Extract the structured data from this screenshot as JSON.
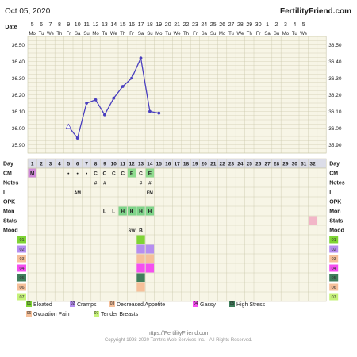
{
  "header": {
    "date": "Oct 05, 2020",
    "site": "FertilityFriend.com"
  },
  "top_axis": {
    "label": "Date",
    "dates": [
      "5",
      "6",
      "7",
      "8",
      "9",
      "10",
      "11",
      "12",
      "13",
      "14",
      "15",
      "16",
      "17",
      "18",
      "19",
      "20",
      "21",
      "22",
      "23",
      "24",
      "25",
      "26",
      "27",
      "28",
      "29",
      "30",
      "1",
      "2",
      "3",
      "4",
      "5"
    ],
    "weekdays": [
      "Mo",
      "Tu",
      "We",
      "Th",
      "Fr",
      "Sa",
      "Su",
      "Mo",
      "Tu",
      "We",
      "Th",
      "Fr",
      "Sa",
      "Su",
      "Mo",
      "Tu",
      "We",
      "Th",
      "Fr",
      "Sa",
      "Su",
      "Mo",
      "Tu",
      "We",
      "Th",
      "Fr",
      "Sa",
      "Su",
      "Mo",
      "Tu",
      "We"
    ]
  },
  "chart_data": {
    "type": "line",
    "title": "",
    "xlabel": "Day",
    "ylabel": "",
    "ylim": [
      35.85,
      36.55
    ],
    "yticks": [
      "35.90",
      "36.00",
      "36.10",
      "36.20",
      "36.30",
      "36.40",
      "36.50"
    ],
    "series": [
      {
        "x": [
          5,
          6,
          7,
          8,
          9,
          10,
          11,
          12,
          13,
          14,
          15
        ],
        "values": [
          36.01,
          35.94,
          36.15,
          36.17,
          36.08,
          36.18,
          36.25,
          36.3,
          36.42,
          36.1,
          36.09
        ],
        "open_circle_days": [
          5
        ],
        "color": "#4a3fbf"
      }
    ],
    "grid": true
  },
  "table": {
    "day_label": "Day",
    "days": [
      "1",
      "2",
      "3",
      "4",
      "5",
      "6",
      "7",
      "8",
      "9",
      "10",
      "11",
      "12",
      "13",
      "14",
      "15",
      "16",
      "17",
      "18",
      "19",
      "20",
      "21",
      "22",
      "23",
      "24",
      "25",
      "26",
      "27",
      "28",
      "29",
      "30",
      "31",
      "32"
    ],
    "rows": [
      {
        "label": "CM",
        "cells": {
          "1": "M",
          "5": "•",
          "6": "•",
          "7": "•",
          "8": "C",
          "9": "C",
          "10": "C",
          "11": "C",
          "12": "E",
          "13": "C",
          "14": "E"
        }
      },
      {
        "label": "Notes",
        "cells": {
          "8": "#",
          "9": "#",
          "13": "#",
          "14": "#"
        }
      },
      {
        "label": "I",
        "cells": {
          "6": "AM",
          "14": "FM"
        }
      },
      {
        "label": "OPK",
        "cells": {
          "8": "-",
          "9": "-",
          "10": "-",
          "11": "-",
          "12": "-",
          "13": "-",
          "14": "-"
        }
      },
      {
        "label": "Mon",
        "cells": {
          "9": "L",
          "10": "L",
          "11": "H",
          "12": "H",
          "13": "H",
          "14": "H"
        }
      },
      {
        "label": "Stats",
        "cells": {}
      },
      {
        "label": "Mood",
        "cells": {
          "12": "SW",
          "13": "B"
        }
      }
    ],
    "symptom_rows": [
      "01",
      "02",
      "03",
      "04",
      "05",
      "06",
      "07"
    ]
  },
  "colors": {
    "grid_bg": "#f7f5e6",
    "grid_line": "#c9c6a8",
    "header_row": "#dcdde8",
    "cm_menses": "#d08ad8",
    "cm_eggwhite": "#8fdc8f",
    "cm_creamy": "#ffffff",
    "mon_high": "#7fd48a",
    "stats_pink": "#f2b6c8",
    "s01": "#7fd435",
    "s02": "#b68ef0",
    "s03": "#f6c09a",
    "s04": "#f54ff0",
    "s05": "#3f7e5b",
    "s06": "#f6c09a",
    "s07": "#c6f27a"
  },
  "legend": [
    {
      "code": "01",
      "text": "Bloated"
    },
    {
      "code": "02",
      "text": "Cramps"
    },
    {
      "code": "03",
      "text": "Decreased Appetite"
    },
    {
      "code": "04",
      "text": "Gassy"
    },
    {
      "code": "05",
      "text": "High Stress"
    },
    {
      "code": "06",
      "text": "Ovulation Pain"
    },
    {
      "code": "07",
      "text": "Tender Breasts"
    }
  ],
  "footer": {
    "url": "https://FertilityFriend.com",
    "copyright": "Copyright 1998-2020 Tamtris Web Services Inc. - All Rights Reserved."
  }
}
